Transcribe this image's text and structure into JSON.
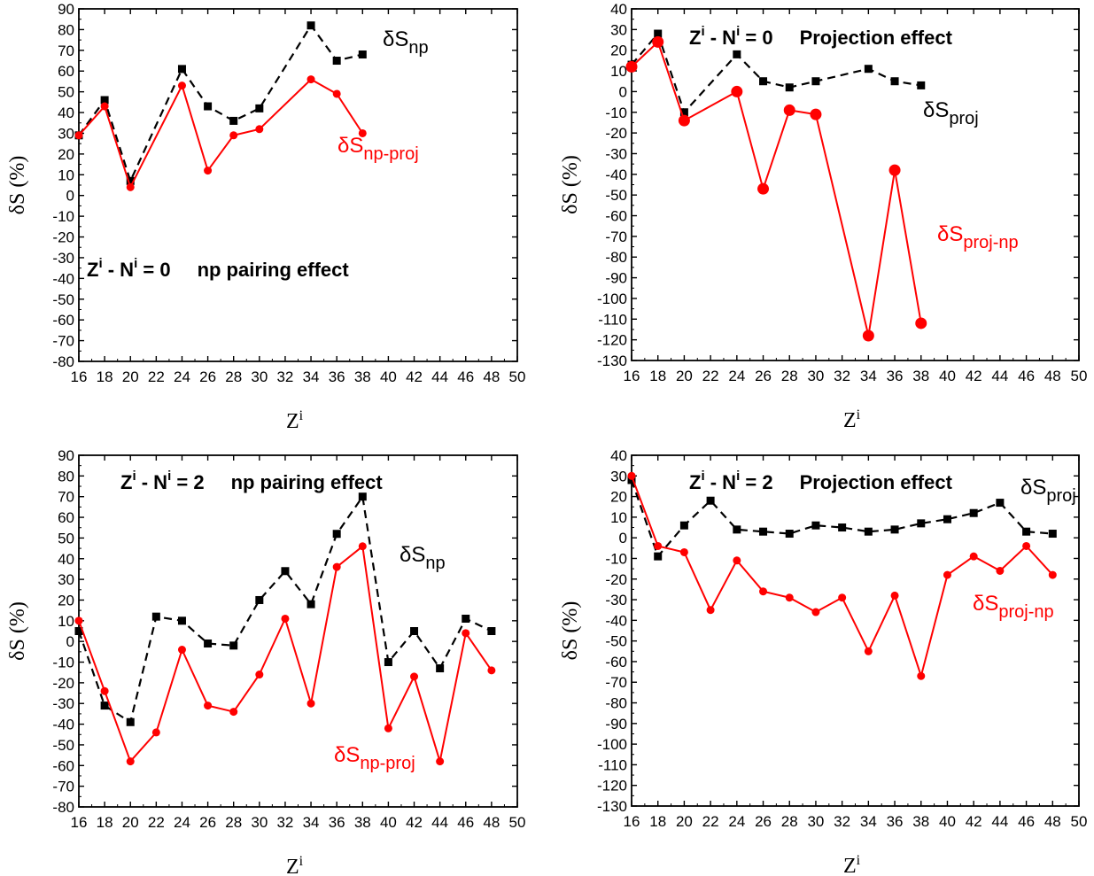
{
  "chart_data": [
    {
      "type": "line",
      "ylabel": "δS (%)",
      "xlabel": "Z",
      "xlabel_sup": "i",
      "xlim": [
        16,
        50
      ],
      "ylim": [
        -80,
        90
      ],
      "xticks": [
        "16",
        "18",
        "20",
        "22",
        "24",
        "26",
        "28",
        "30",
        "32",
        "34",
        "36",
        "38",
        "40",
        "42",
        "44",
        "46",
        "48",
        "50"
      ],
      "yticks": [
        "-80",
        "-70",
        "-60",
        "-50",
        "-40",
        "-30",
        "-20",
        "-10",
        "0",
        "10",
        "20",
        "30",
        "40",
        "50",
        "60",
        "70",
        "80",
        "90"
      ],
      "annotation": {
        "z": "Z",
        "z_sup": "i",
        "dash": " - N",
        "n_sup": "i",
        "eq": " = 0",
        "effect": "np pairing effect"
      },
      "series": [
        {
          "name": "δS",
          "name_sub": "np",
          "color": "#000000",
          "style": "dashed",
          "marker": "square",
          "x": [
            16,
            18,
            20,
            24,
            26,
            28,
            30,
            34,
            36,
            38
          ],
          "values": [
            29,
            46,
            7,
            61,
            43,
            36,
            42,
            82,
            65,
            68
          ]
        },
        {
          "name": "δS",
          "name_sub": "np-proj",
          "color": "#ff0000",
          "style": "solid",
          "marker": "circle",
          "x": [
            16,
            18,
            20,
            24,
            26,
            28,
            30,
            34,
            36,
            38
          ],
          "values": [
            29,
            43,
            4,
            53,
            12,
            29,
            32,
            56,
            49,
            30
          ]
        }
      ]
    },
    {
      "type": "line",
      "ylabel": "δS (%)",
      "xlabel": "Z",
      "xlabel_sup": "i",
      "xlim": [
        16,
        50
      ],
      "ylim": [
        -130,
        40
      ],
      "xticks": [
        "16",
        "18",
        "20",
        "22",
        "24",
        "26",
        "28",
        "30",
        "32",
        "34",
        "36",
        "38",
        "40",
        "42",
        "44",
        "46",
        "48",
        "50"
      ],
      "yticks": [
        "-130",
        "-120",
        "-110",
        "-100",
        "-90",
        "-80",
        "-70",
        "-60",
        "-50",
        "-40",
        "-30",
        "-20",
        "-10",
        "0",
        "10",
        "20",
        "30",
        "40"
      ],
      "annotation": {
        "z": "Z",
        "z_sup": "i",
        "dash": " - N",
        "n_sup": "i",
        "eq": " = 0",
        "effect": "Projection effect"
      },
      "series": [
        {
          "name": "δS",
          "name_sub": "proj",
          "color": "#000000",
          "style": "dashed",
          "marker": "square",
          "x": [
            16,
            18,
            20,
            24,
            26,
            28,
            30,
            34,
            36,
            38
          ],
          "values": [
            13,
            28,
            -10,
            18,
            5,
            2,
            5,
            11,
            5,
            3
          ]
        },
        {
          "name": "δS",
          "name_sub": "proj-np",
          "color": "#ff0000",
          "style": "solid",
          "marker": "circle",
          "x": [
            16,
            18,
            20,
            24,
            26,
            28,
            30,
            34,
            36,
            38
          ],
          "values": [
            12,
            24,
            -14,
            0,
            -47,
            -9,
            -11,
            -118,
            -38,
            -112
          ]
        }
      ]
    },
    {
      "type": "line",
      "ylabel": "δS (%)",
      "xlabel": "Z",
      "xlabel_sup": "i",
      "xlim": [
        16,
        50
      ],
      "ylim": [
        -80,
        90
      ],
      "xticks": [
        "16",
        "18",
        "20",
        "22",
        "24",
        "26",
        "28",
        "30",
        "32",
        "34",
        "36",
        "38",
        "40",
        "42",
        "44",
        "46",
        "48",
        "50"
      ],
      "yticks": [
        "-80",
        "-70",
        "-60",
        "-50",
        "-40",
        "-30",
        "-20",
        "-10",
        "0",
        "10",
        "20",
        "30",
        "40",
        "50",
        "60",
        "70",
        "80",
        "90"
      ],
      "annotation": {
        "z": "Z",
        "z_sup": "i",
        "dash": " - N",
        "n_sup": "i",
        "eq": " = 2",
        "effect": "np pairing effect"
      },
      "series": [
        {
          "name": "δS",
          "name_sub": "np",
          "color": "#000000",
          "style": "dashed",
          "marker": "square",
          "x": [
            16,
            18,
            20,
            22,
            24,
            26,
            28,
            30,
            32,
            34,
            36,
            38,
            40,
            42,
            44,
            46,
            48
          ],
          "values": [
            5,
            -31,
            -39,
            12,
            10,
            -1,
            -2,
            20,
            34,
            18,
            52,
            70,
            -10,
            5,
            -13,
            11,
            5
          ]
        },
        {
          "name": "δS",
          "name_sub": "np-proj",
          "color": "#ff0000",
          "style": "solid",
          "marker": "circle",
          "x": [
            16,
            18,
            20,
            22,
            24,
            26,
            28,
            30,
            32,
            34,
            36,
            38,
            40,
            42,
            44,
            46,
            48
          ],
          "values": [
            10,
            -24,
            -58,
            -44,
            -4,
            -31,
            -34,
            -16,
            11,
            -30,
            36,
            46,
            -42,
            -17,
            -58,
            4,
            -14
          ]
        }
      ]
    },
    {
      "type": "line",
      "ylabel": "δS (%)",
      "xlabel": "Z",
      "xlabel_sup": "i",
      "xlim": [
        16,
        50
      ],
      "ylim": [
        -130,
        40
      ],
      "xticks": [
        "16",
        "18",
        "20",
        "22",
        "24",
        "26",
        "28",
        "30",
        "32",
        "34",
        "36",
        "38",
        "40",
        "42",
        "44",
        "46",
        "48",
        "50"
      ],
      "yticks": [
        "-130",
        "-120",
        "-110",
        "-100",
        "-90",
        "-80",
        "-70",
        "-60",
        "-50",
        "-40",
        "-30",
        "-20",
        "-10",
        "0",
        "10",
        "20",
        "30",
        "40"
      ],
      "annotation": {
        "z": "Z",
        "z_sup": "i",
        "dash": " - N",
        "n_sup": "i",
        "eq": " = 2",
        "effect": "Projection effect"
      },
      "series": [
        {
          "name": "δS",
          "name_sub": "proj",
          "color": "#000000",
          "style": "dashed",
          "marker": "square",
          "x": [
            16,
            18,
            20,
            22,
            24,
            26,
            28,
            30,
            32,
            34,
            36,
            38,
            40,
            42,
            44,
            46,
            48
          ],
          "values": [
            28,
            -9,
            6,
            18,
            4,
            3,
            2,
            6,
            5,
            3,
            4,
            7,
            9,
            12,
            17,
            3,
            2
          ]
        },
        {
          "name": "δS",
          "name_sub": "proj-np",
          "color": "#ff0000",
          "style": "solid",
          "marker": "circle",
          "x": [
            16,
            18,
            20,
            22,
            24,
            26,
            28,
            30,
            32,
            34,
            36,
            38,
            40,
            42,
            44,
            46,
            48
          ],
          "values": [
            30,
            -4,
            -7,
            -35,
            -11,
            -26,
            -29,
            -36,
            -29,
            -55,
            -28,
            -67,
            -18,
            -9,
            -16,
            -4,
            -18
          ]
        }
      ]
    }
  ]
}
